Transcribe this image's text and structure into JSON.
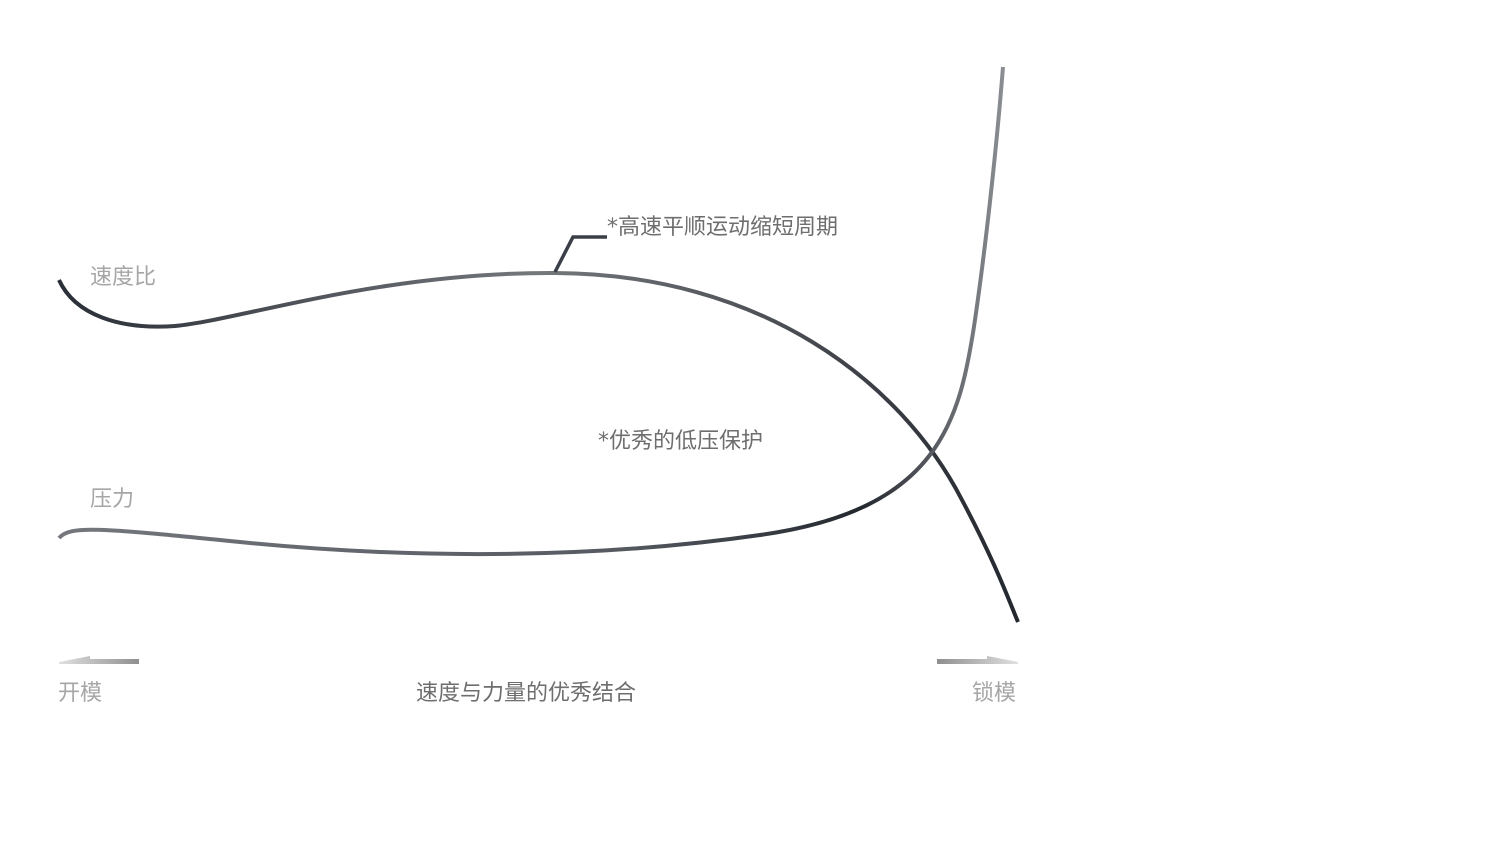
{
  "labels": {
    "speed_ratio": "速度比",
    "pressure": "压力",
    "high_speed_note": "*高速平顺运动缩短周期",
    "low_pressure_note": "*优秀的低压保护",
    "open_mold": "开模",
    "center_caption": "速度与力量的优秀结合",
    "lock_mold": "锁模"
  },
  "colors": {
    "axis_dark": "#1d2026",
    "axis_light": "#7a7d82",
    "curve_dark": "#2a2e36",
    "curve_light": "#74777c",
    "text_primary": "#6e6e6e",
    "text_muted": "#a6a6a6",
    "arrow": "#9a9a9a"
  }
}
